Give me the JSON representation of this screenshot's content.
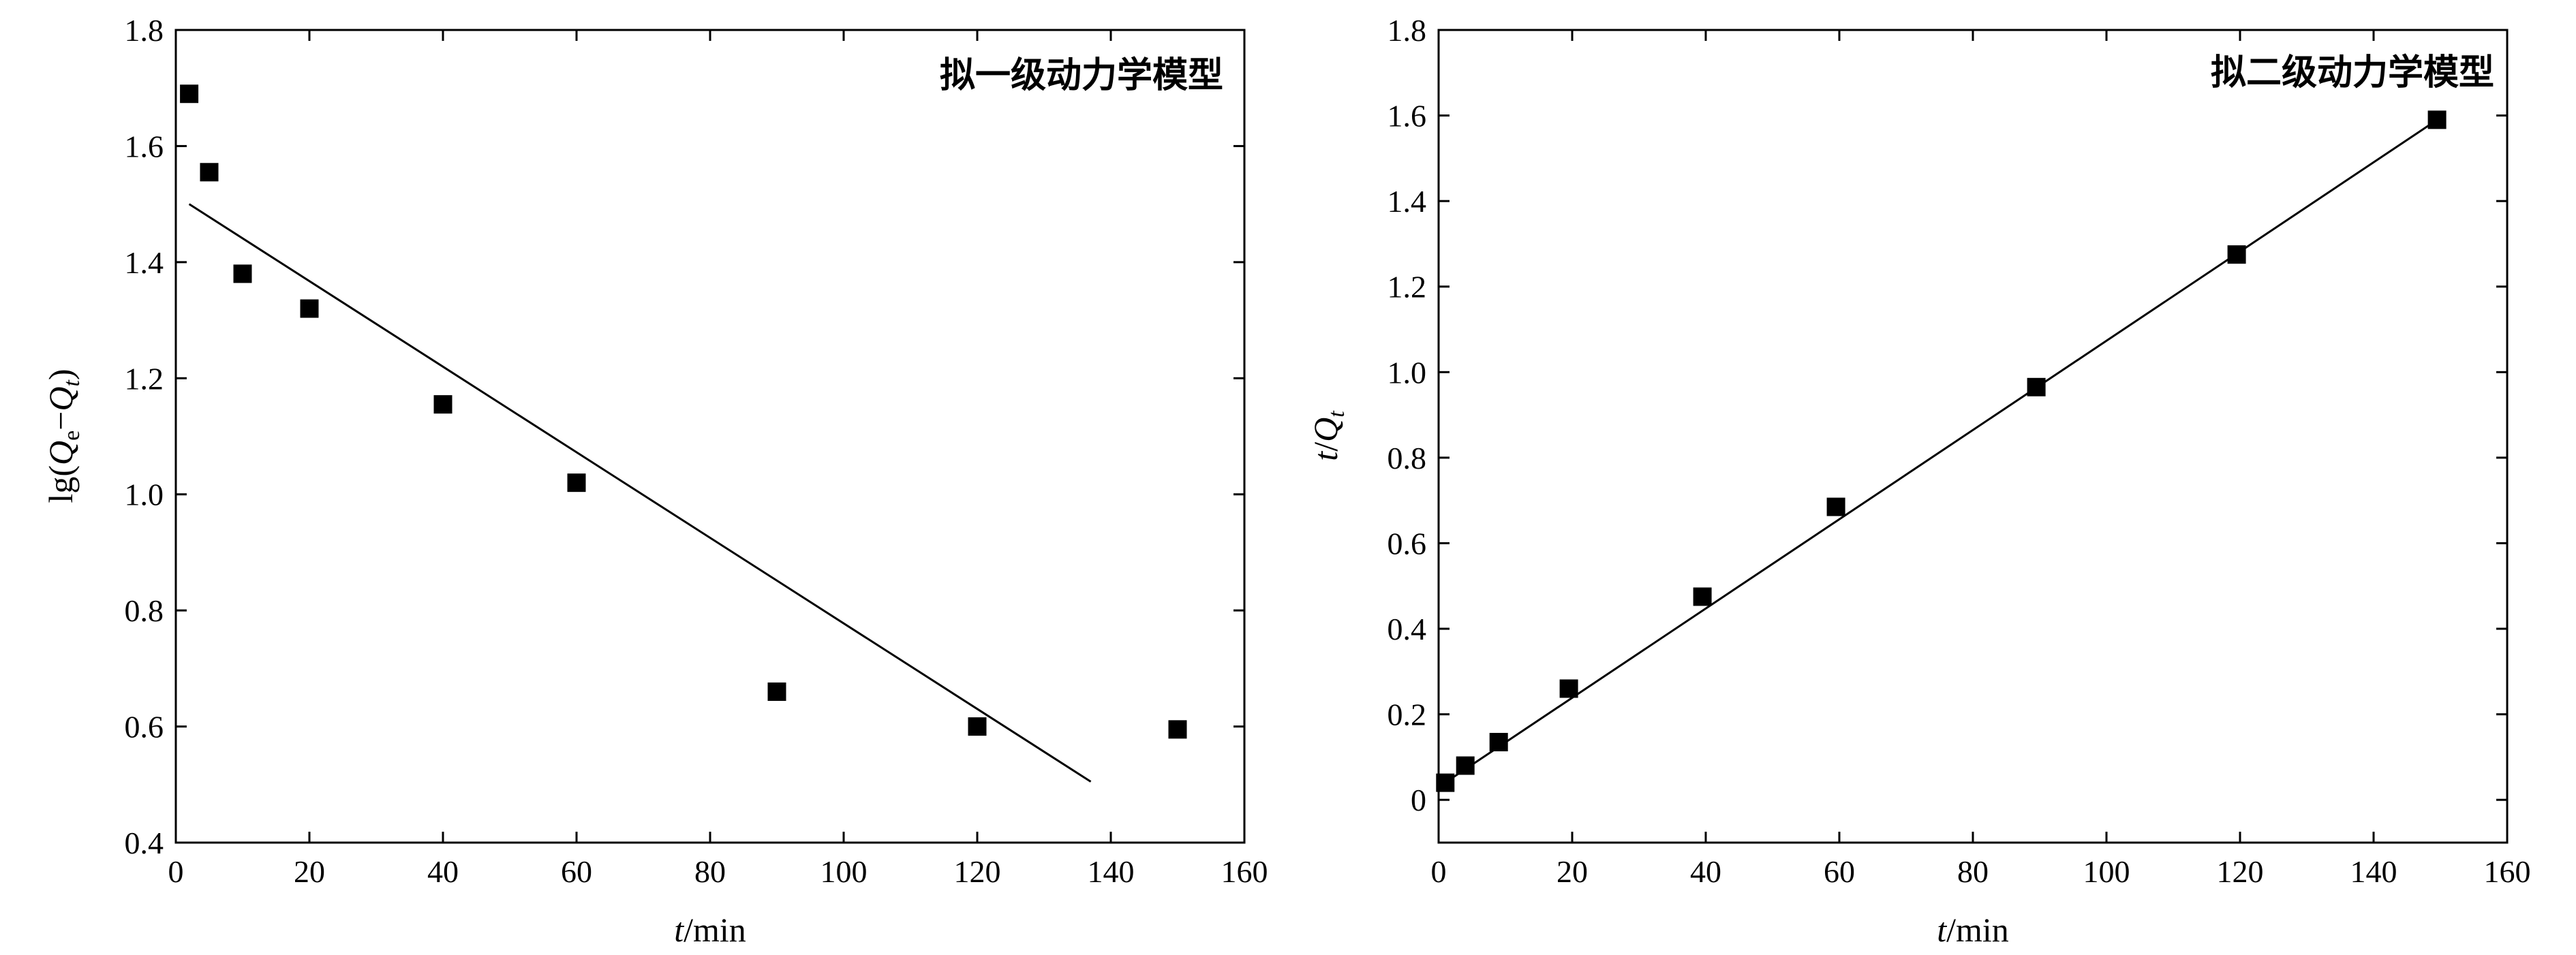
{
  "chart_data": [
    {
      "type": "scatter",
      "title": "拟一级动力学模型",
      "xlabel_var": "t",
      "xlabel_unit": "/min",
      "ylabel": {
        "prefix": "lg(",
        "q1": "Q",
        "sub1": "e",
        "dash": "−",
        "q2": "Q",
        "sub2": "t",
        "suffix": ")"
      },
      "xlim": [
        0,
        160
      ],
      "ylim": [
        0.4,
        1.8
      ],
      "xticks": [
        0,
        20,
        40,
        60,
        80,
        100,
        120,
        140,
        160
      ],
      "yticks": [
        "0.4",
        "0.6",
        "0.8",
        "1.0",
        "1.2",
        "1.4",
        "1.6",
        "1.8"
      ],
      "series": [
        {
          "points": [
            [
              2,
              1.69
            ],
            [
              5,
              1.555
            ],
            [
              10,
              1.38
            ],
            [
              20,
              1.32
            ],
            [
              40,
              1.155
            ],
            [
              60,
              1.02
            ],
            [
              90,
              0.66
            ],
            [
              120,
              0.6
            ],
            [
              150,
              0.595
            ]
          ],
          "fit_line": [
            [
              2,
              1.5
            ],
            [
              137,
              0.505
            ]
          ]
        }
      ],
      "grid": false
    },
    {
      "type": "scatter",
      "title": "拟二级动力学模型",
      "xlabel_var": "t",
      "xlabel_unit": "/min",
      "ylabel": {
        "v1": "t",
        "slash": "/",
        "q": "Q",
        "sub": "t"
      },
      "xlim": [
        0,
        160
      ],
      "ylim": [
        -0.1,
        1.8
      ],
      "xticks": [
        0,
        20,
        40,
        60,
        80,
        100,
        120,
        140,
        160
      ],
      "yticks": [
        "0",
        "0.2",
        "0.4",
        "0.6",
        "0.8",
        "1.0",
        "1.2",
        "1.4",
        "1.6",
        "1.8"
      ],
      "series": [
        {
          "points": [
            [
              1,
              0.04
            ],
            [
              4,
              0.08
            ],
            [
              9,
              0.135
            ],
            [
              19.5,
              0.26
            ],
            [
              39.5,
              0.475
            ],
            [
              59.5,
              0.685
            ],
            [
              89.5,
              0.965
            ],
            [
              119.5,
              1.275
            ],
            [
              149.5,
              1.59
            ]
          ],
          "fit_line": [
            [
              0,
              0.03
            ],
            [
              150,
              1.595
            ]
          ]
        }
      ],
      "grid": false
    }
  ]
}
